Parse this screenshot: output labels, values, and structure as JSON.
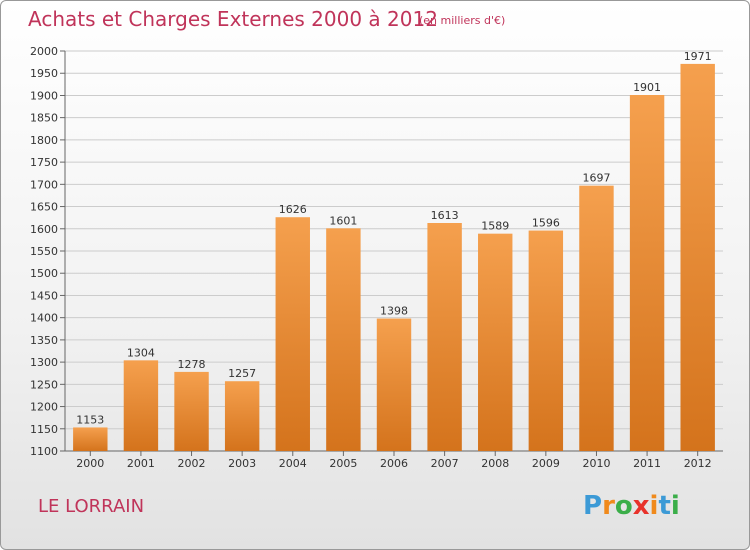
{
  "title": "Achats et Charges Externes 2000 à 2012",
  "subtitle": "(en milliers d'€)",
  "commune": "LE LORRAIN",
  "logo": {
    "letters": [
      "P",
      "r",
      "o",
      "x",
      "i",
      "t",
      "i"
    ],
    "colors": [
      "#3c9ad6",
      "#f08a1c",
      "#3bae49",
      "#e8322b",
      "#f08a1c",
      "#3c9ad6",
      "#3bae49"
    ]
  },
  "colors": {
    "accent": "#c0345a",
    "bar_top": "#f5a04e",
    "bar_bottom": "#d4731c",
    "grid": "#cccccc"
  },
  "chart_data": {
    "type": "bar",
    "title": "Achats et Charges Externes 2000 à 2012",
    "subtitle": "(en milliers d'€)",
    "xlabel": "",
    "ylabel": "",
    "categories": [
      "2000",
      "2001",
      "2002",
      "2003",
      "2004",
      "2005",
      "2006",
      "2007",
      "2008",
      "2009",
      "2010",
      "2011",
      "2012"
    ],
    "values": [
      1153,
      1304,
      1278,
      1257,
      1626,
      1601,
      1398,
      1613,
      1589,
      1596,
      1697,
      1901,
      1971
    ],
    "ylim": [
      1100,
      2000
    ],
    "yticks": [
      1100,
      1150,
      1200,
      1250,
      1300,
      1350,
      1400,
      1450,
      1500,
      1550,
      1600,
      1650,
      1700,
      1750,
      1800,
      1850,
      1900,
      1950,
      2000
    ],
    "grid": true,
    "legend": "none"
  }
}
